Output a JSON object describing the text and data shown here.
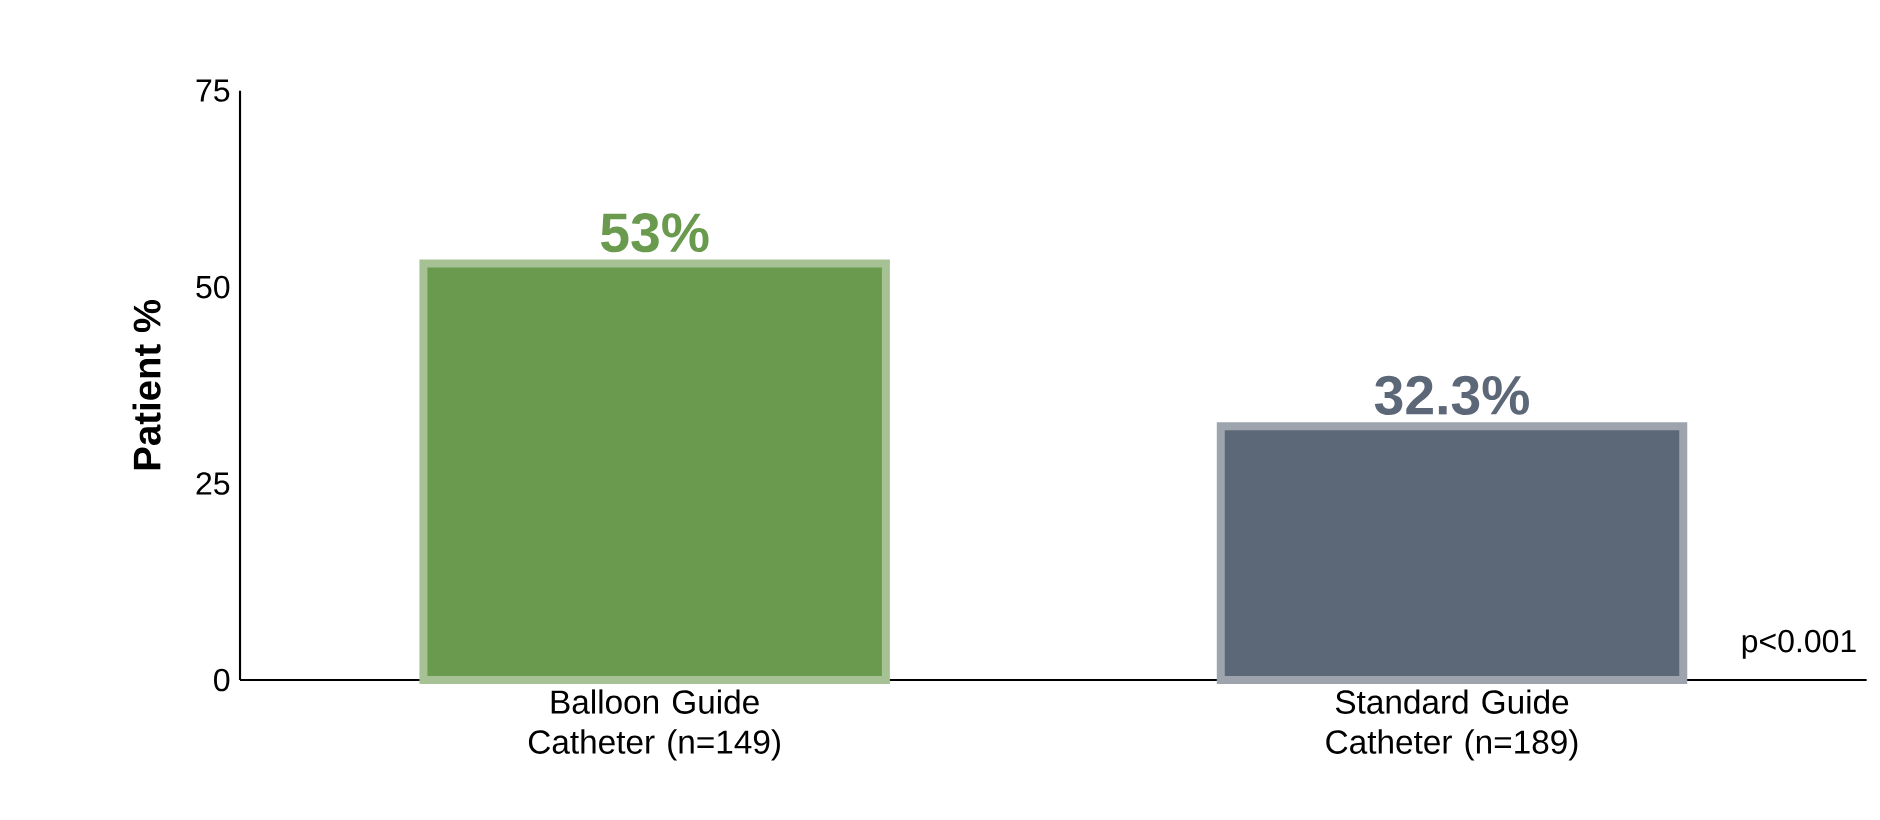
{
  "chart_data": {
    "type": "bar",
    "ylabel": "Patient %",
    "categories": [
      "Balloon Guide Catheter (n=149)",
      "Standard Guide Catheter (n=189)"
    ],
    "values": [
      53,
      32.3
    ],
    "value_labels": [
      "53%",
      "32.3%"
    ],
    "colors": [
      "#6a9a4e",
      "#5c6877"
    ],
    "ylim": [
      0,
      75
    ],
    "yticks": [
      0,
      25,
      50,
      75
    ],
    "grid": false,
    "annotations": [
      "p<0.001"
    ]
  }
}
